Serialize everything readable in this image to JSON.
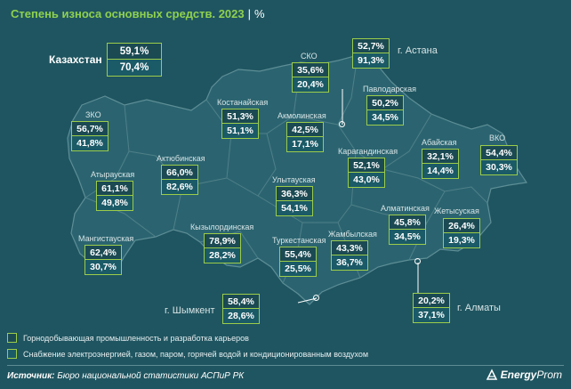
{
  "header": {
    "title": "Степень износа основных средств. 2023",
    "separator": "|",
    "unit": "%"
  },
  "colors": {
    "mining": "#1b4a53",
    "energy": "#1b5a67",
    "accent": "#8fd14f",
    "border": "#9ccc4a",
    "background": "#1f5560",
    "map_fill": "#2b6470"
  },
  "kazakhstan": {
    "label": "Казахстан",
    "mining": "59,1%",
    "energy": "70,4%"
  },
  "regions": [
    {
      "id": "zko",
      "label": "ЗКО",
      "mining": "56,7%",
      "energy": "41,8%"
    },
    {
      "id": "atyrau",
      "label": "Атырауская",
      "mining": "61,1%",
      "energy": "49,8%"
    },
    {
      "id": "mangystau",
      "label": "Мангистауская",
      "mining": "62,4%",
      "energy": "30,7%"
    },
    {
      "id": "aktobe",
      "label": "Актюбинская",
      "mining": "66,0%",
      "energy": "82,6%"
    },
    {
      "id": "kostanay",
      "label": "Костанайская",
      "mining": "51,3%",
      "energy": "51,1%"
    },
    {
      "id": "sko",
      "label": "СКО",
      "mining": "35,6%",
      "energy": "20,4%"
    },
    {
      "id": "akmola",
      "label": "Акмолинская",
      "mining": "42,5%",
      "energy": "17,1%"
    },
    {
      "id": "pavlodar",
      "label": "Павлодарская",
      "mining": "50,2%",
      "energy": "34,5%"
    },
    {
      "id": "karaganda",
      "label": "Карагандинская",
      "mining": "52,1%",
      "energy": "43,0%"
    },
    {
      "id": "abay",
      "label": "Абайская",
      "mining": "32,1%",
      "energy": "14,4%"
    },
    {
      "id": "vko",
      "label": "ВКО",
      "mining": "54,4%",
      "energy": "30,3%"
    },
    {
      "id": "ulytau",
      "label": "Улытауская",
      "mining": "36,3%",
      "energy": "54,1%"
    },
    {
      "id": "kyzylorda",
      "label": "Кызылординская",
      "mining": "78,9%",
      "energy": "28,2%"
    },
    {
      "id": "turkestan",
      "label": "Туркестанская",
      "mining": "55,4%",
      "energy": "25,5%"
    },
    {
      "id": "zhambyl",
      "label": "Жамбылская",
      "mining": "43,3%",
      "energy": "36,7%"
    },
    {
      "id": "almaty_reg",
      "label": "Алматинская",
      "mining": "45,8%",
      "energy": "34,5%"
    },
    {
      "id": "zhetysu",
      "label": "Жетысуская",
      "mining": "26,4%",
      "energy": "19,3%"
    }
  ],
  "cities": [
    {
      "id": "astana",
      "label": "г. Астана",
      "mining": "52,7%",
      "energy": "91,3%"
    },
    {
      "id": "shymkent",
      "label": "г. Шымкент",
      "mining": "58,4%",
      "energy": "28,6%"
    },
    {
      "id": "almaty",
      "label": "г. Алматы",
      "mining": "20,2%",
      "energy": "37,1%"
    }
  ],
  "legend": {
    "mining": "Горнодобывающая промышленность и разработка карьеров",
    "energy": "Снабжение электроэнергией, газом, паром, горячей водой и кондиционированным воздухом"
  },
  "footer": {
    "source_key": "Источник:",
    "source_text": "Бюро национальной статистики АСПиР РК",
    "logo_energy": "Energy",
    "logo_prom": "Prom"
  }
}
